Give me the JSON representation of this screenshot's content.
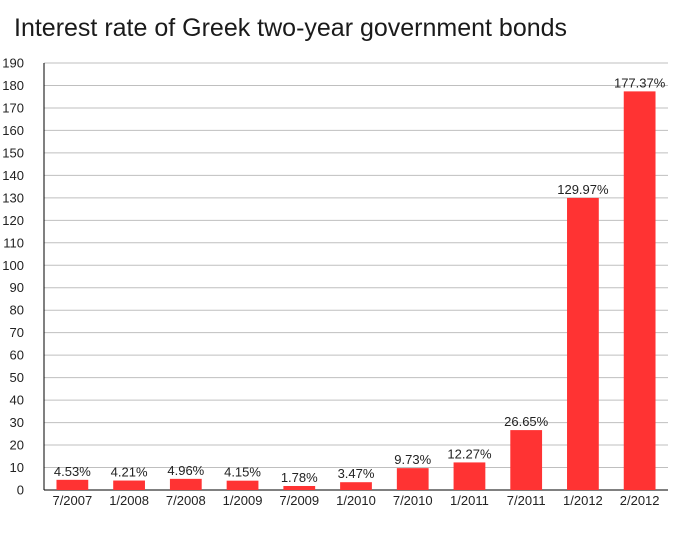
{
  "chart_data": {
    "type": "bar",
    "title": "Interest rate of Greek two-year government bonds",
    "xlabel": "",
    "ylabel": "",
    "categories": [
      "7/2007",
      "1/2008",
      "7/2008",
      "1/2009",
      "7/2009",
      "1/2010",
      "7/2010",
      "1/2011",
      "7/2011",
      "1/2012",
      "2/2012"
    ],
    "values": [
      4.53,
      4.21,
      4.96,
      4.15,
      1.78,
      3.47,
      9.73,
      12.27,
      26.65,
      129.97,
      177.37
    ],
    "data_labels": [
      "4.53%",
      "4.21%",
      "4.96%",
      "4.15%",
      "1.78%",
      "3.47%",
      "9.73%",
      "12.27%",
      "26.65%",
      "129.97%",
      "177.37%"
    ],
    "ylim": [
      0,
      190
    ],
    "yticks": [
      0,
      10,
      20,
      30,
      40,
      50,
      60,
      70,
      80,
      90,
      100,
      110,
      120,
      130,
      140,
      150,
      160,
      170,
      180,
      190
    ],
    "grid": true,
    "bar_color": "#ff3333",
    "grid_color": "#bfbfbf"
  }
}
